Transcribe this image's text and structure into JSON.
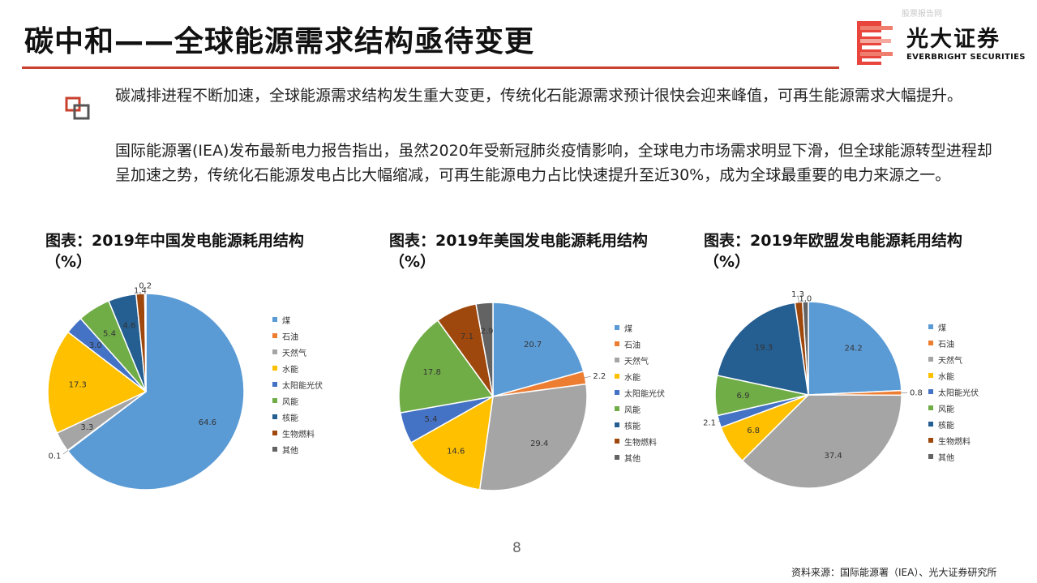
{
  "header": {
    "title": "碳中和——全球能源需求结构亟待变更",
    "watermark": "股票报告网",
    "brand_cn": "光大证券",
    "brand_en": "EVERBRIGHT SECURITIES"
  },
  "body": {
    "para1": "碳减排进程不断加速，全球能源需求结构发生重大变更，传统化石能源需求预计很快会迎来峰值，可再生能源需求大幅提升。",
    "para2": "国际能源署(IEA)发布最新电力报告指出，虽然2020年受新冠肺炎疫情影响，全球电力市场需求明显下滑，但全球能源转型进程却呈加速之势，传统化石能源发电占比大幅缩减，可再生能源电力占比快速提升至近30%，成为全球最重要的电力来源之一。"
  },
  "legend": {
    "items": [
      "煤",
      "石油",
      "天然气",
      "水能",
      "太阳能光伏",
      "风能",
      "核能",
      "生物燃料",
      "其他"
    ],
    "colors": [
      "#5b9bd5",
      "#ed7d31",
      "#a5a5a5",
      "#ffc000",
      "#4472c4",
      "#70ad47",
      "#255e91",
      "#9e480e",
      "#636363"
    ]
  },
  "chart_data": [
    {
      "type": "pie",
      "title": "图表：2019年中国发电能源耗用结构（%）",
      "categories": [
        "煤",
        "石油",
        "天然气",
        "水能",
        "太阳能光伏",
        "风能",
        "核能",
        "生物燃料",
        "其他"
      ],
      "values": [
        64.6,
        0.1,
        3.3,
        17.3,
        3.0,
        5.4,
        4.6,
        1.4,
        0.2
      ]
    },
    {
      "type": "pie",
      "title": "图表：2019年美国发电能源耗用结构（%）",
      "categories": [
        "煤",
        "石油",
        "天然气",
        "水能",
        "太阳能光伏",
        "风能",
        "核能",
        "生物燃料",
        "其他"
      ],
      "values": [
        20.7,
        2.2,
        29.4,
        14.6,
        5.4,
        17.8,
        0,
        7.1,
        2.9
      ]
    },
    {
      "type": "pie",
      "title": "图表：2019年欧盟发电能源耗用结构（%）",
      "categories": [
        "煤",
        "石油",
        "天然气",
        "水能",
        "太阳能光伏",
        "风能",
        "核能",
        "生物燃料",
        "其他"
      ],
      "values": [
        24.2,
        0.8,
        37.4,
        6.8,
        2.1,
        6.9,
        19.3,
        1.3,
        1.0
      ]
    }
  ],
  "footer": {
    "page_number": "8",
    "source": "资料来源：国际能源署（IEA）、光大证券研究所"
  }
}
